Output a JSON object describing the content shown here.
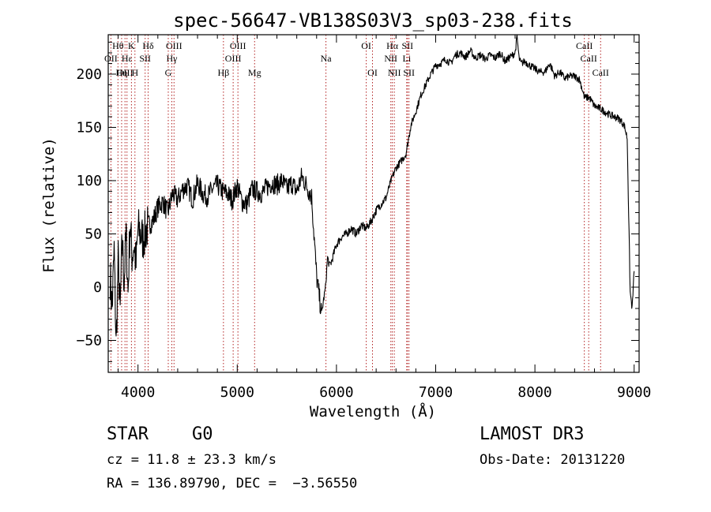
{
  "chart_data": {
    "type": "line",
    "title": "spec-56647-VB138S03V3_sp03-238.fits",
    "xlabel": "Wavelength (Å)",
    "ylabel": "Flux (relative)",
    "xlim": [
      3700,
      9050
    ],
    "ylim": [
      -80,
      237
    ],
    "xticks": [
      {
        "value": 4000,
        "label": "4000"
      },
      {
        "value": 5000,
        "label": "5000"
      },
      {
        "value": 6000,
        "label": "6000"
      },
      {
        "value": 7000,
        "label": "7000"
      },
      {
        "value": 8000,
        "label": "8000"
      },
      {
        "value": 9000,
        "label": "9000"
      }
    ],
    "yticks": [
      {
        "value": -50,
        "label": "−50"
      },
      {
        "value": 0,
        "label": "0"
      },
      {
        "value": 50,
        "label": "50"
      },
      {
        "value": 100,
        "label": "100"
      },
      {
        "value": 150,
        "label": "150"
      },
      {
        "value": 200,
        "label": "200"
      }
    ],
    "line_color": "#000000",
    "marker_color": "#b22222",
    "series": [
      {
        "name": "flux",
        "x": [
          3720,
          3740,
          3760,
          3780,
          3800,
          3820,
          3840,
          3860,
          3880,
          3900,
          3920,
          3940,
          3960,
          3980,
          4000,
          4050,
          4100,
          4150,
          4200,
          4250,
          4300,
          4350,
          4400,
          4450,
          4500,
          4550,
          4600,
          4650,
          4700,
          4750,
          4800,
          4850,
          4900,
          4950,
          5000,
          5050,
          5100,
          5150,
          5200,
          5250,
          5300,
          5350,
          5400,
          5450,
          5500,
          5550,
          5600,
          5650,
          5700,
          5750,
          5800,
          5850,
          5870,
          5890,
          5910,
          5930,
          5950,
          6000,
          6050,
          6100,
          6150,
          6200,
          6250,
          6300,
          6350,
          6400,
          6450,
          6500,
          6550,
          6600,
          6650,
          6700,
          6750,
          6800,
          6850,
          6900,
          6950,
          7000,
          7050,
          7100,
          7150,
          7200,
          7250,
          7300,
          7350,
          7400,
          7450,
          7500,
          7550,
          7600,
          7650,
          7700,
          7750,
          7800,
          7820,
          7840,
          7860,
          7900,
          7950,
          8000,
          8050,
          8100,
          8150,
          8200,
          8250,
          8300,
          8350,
          8400,
          8450,
          8500,
          8530,
          8550,
          8600,
          8650,
          8700,
          8750,
          8800,
          8850,
          8900,
          8930,
          8960,
          8980,
          9000
        ],
        "y": [
          10,
          -20,
          35,
          -55,
          25,
          -25,
          45,
          5,
          50,
          -5,
          60,
          30,
          40,
          20,
          55,
          45,
          58,
          62,
          75,
          80,
          70,
          88,
          82,
          92,
          95,
          82,
          98,
          88,
          85,
          92,
          96,
          90,
          88,
          82,
          95,
          80,
          78,
          92,
          90,
          88,
          94,
          98,
          96,
          100,
          92,
          98,
          90,
          104,
          95,
          85,
          10,
          -25,
          -12,
          0,
          28,
          20,
          24,
          40,
          47,
          50,
          55,
          50,
          58,
          55,
          62,
          72,
          78,
          84,
          100,
          112,
          118,
          125,
          152,
          165,
          180,
          190,
          200,
          208,
          210,
          214,
          210,
          218,
          220,
          216,
          222,
          215,
          218,
          214,
          218,
          215,
          220,
          212,
          216,
          220,
          235,
          215,
          210,
          212,
          208,
          205,
          202,
          202,
          210,
          198,
          202,
          196,
          198,
          198,
          195,
          178,
          178,
          178,
          170,
          168,
          165,
          162,
          160,
          158,
          152,
          140,
          -5,
          -20,
          15
        ]
      }
    ],
    "lines": [
      {
        "name": "Hθ",
        "wl": 3798,
        "pos": "top",
        "row": 0
      },
      {
        "name": "OII",
        "wl": 3727,
        "pos": "top",
        "row": 1
      },
      {
        "name": "OIII",
        "wl": 3869,
        "pos": "bottom",
        "row": 2
      },
      {
        "name": "Hε",
        "wl": 3889,
        "pos": "top",
        "row": 1
      },
      {
        "name": "K",
        "wl": 3934,
        "pos": "top",
        "row": 0
      },
      {
        "name": "Hη",
        "wl": 3835,
        "pos": "bottom",
        "row": 2
      },
      {
        "name": "H",
        "wl": 3969,
        "pos": "bottom",
        "row": 2
      },
      {
        "name": "SII",
        "wl": 4072,
        "pos": "top",
        "row": 1
      },
      {
        "name": "Hδ",
        "wl": 4102,
        "pos": "top",
        "row": 0
      },
      {
        "name": "OIII",
        "wl": 4363,
        "pos": "top",
        "row": 0
      },
      {
        "name": "Hγ",
        "wl": 4341,
        "pos": "top",
        "row": 1
      },
      {
        "name": "G",
        "wl": 4305,
        "pos": "bottom",
        "row": 2
      },
      {
        "name": "Hβ",
        "wl": 4861,
        "pos": "bottom",
        "row": 2
      },
      {
        "name": "OIII",
        "wl": 5007,
        "pos": "top",
        "row": 0
      },
      {
        "name": "OIII",
        "wl": 4959,
        "pos": "top",
        "row": 1
      },
      {
        "name": "Mg",
        "wl": 5175,
        "pos": "bottom",
        "row": 2
      },
      {
        "name": "Na",
        "wl": 5894,
        "pos": "top",
        "row": 1
      },
      {
        "name": "OI",
        "wl": 6300,
        "pos": "top",
        "row": 0
      },
      {
        "name": "OI",
        "wl": 6363,
        "pos": "bottom",
        "row": 2
      },
      {
        "name": "Hα",
        "wl": 6563,
        "pos": "top",
        "row": 0
      },
      {
        "name": "NII",
        "wl": 6548,
        "pos": "top",
        "row": 1
      },
      {
        "name": "NII",
        "wl": 6583,
        "pos": "bottom",
        "row": 2
      },
      {
        "name": "SII",
        "wl": 6716,
        "pos": "top",
        "row": 0
      },
      {
        "name": "Li",
        "wl": 6708,
        "pos": "top",
        "row": 1
      },
      {
        "name": "SII",
        "wl": 6731,
        "pos": "bottom",
        "row": 2
      },
      {
        "name": "CaII",
        "wl": 8498,
        "pos": "top",
        "row": 0
      },
      {
        "name": "CaII",
        "wl": 8542,
        "pos": "top",
        "row": 1
      },
      {
        "name": "CaII",
        "wl": 8662,
        "pos": "bottom",
        "row": 2
      }
    ]
  },
  "info": {
    "object_type": "STAR",
    "subclass": "G0",
    "survey": "LAMOST DR3",
    "redshift": "cz = 11.8 ± 23.3 km/s",
    "obs_date": "Obs-Date: 20131220",
    "coords": "RA = 136.89790, DEC =  −3.56550"
  }
}
